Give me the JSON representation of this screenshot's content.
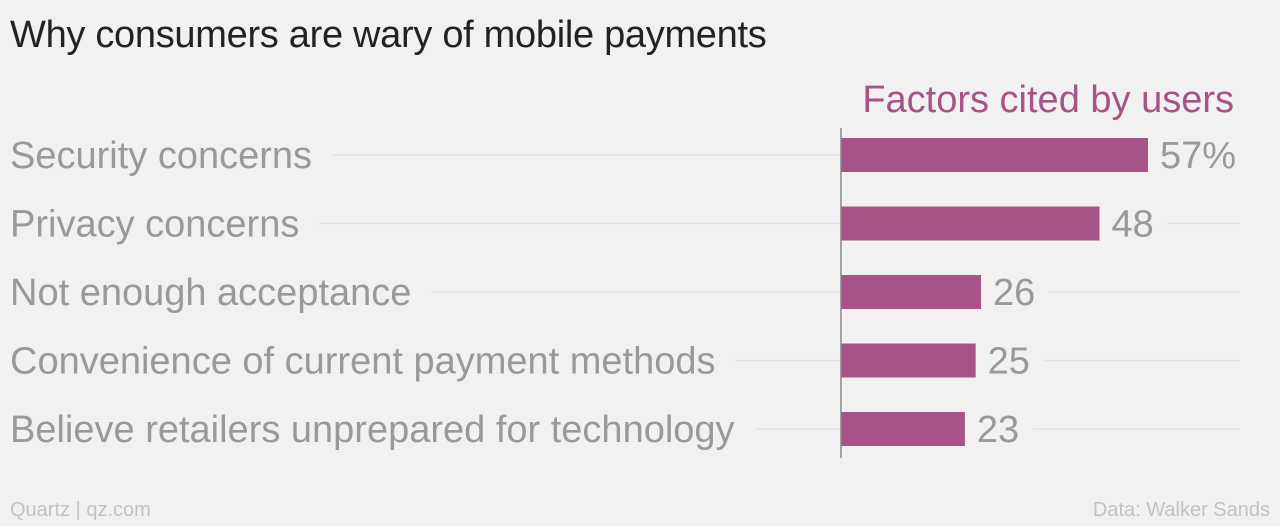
{
  "chart_data": {
    "type": "bar",
    "orientation": "horizontal",
    "title": "Why consumers are wary of mobile payments",
    "series": [
      {
        "name": "Factors cited by users",
        "color": "#a85385",
        "values": [
          57,
          48,
          26,
          25,
          23
        ]
      }
    ],
    "categories": [
      "Security concerns",
      "Privacy concerns",
      "Not enough acceptance",
      "Convenience of current payment methods",
      "Believe retailers unprepared for technology"
    ],
    "value_labels": [
      "57%",
      "48",
      "26",
      "25",
      "23"
    ],
    "xlim": [
      0,
      57
    ],
    "grid": true
  },
  "footer": {
    "source_left": "Quartz | qz.com",
    "source_right": "Data: Walker Sands"
  },
  "colors": {
    "background": "#f1f1f1",
    "bar": "#a85385",
    "text": "#999999",
    "title": "#222222"
  }
}
